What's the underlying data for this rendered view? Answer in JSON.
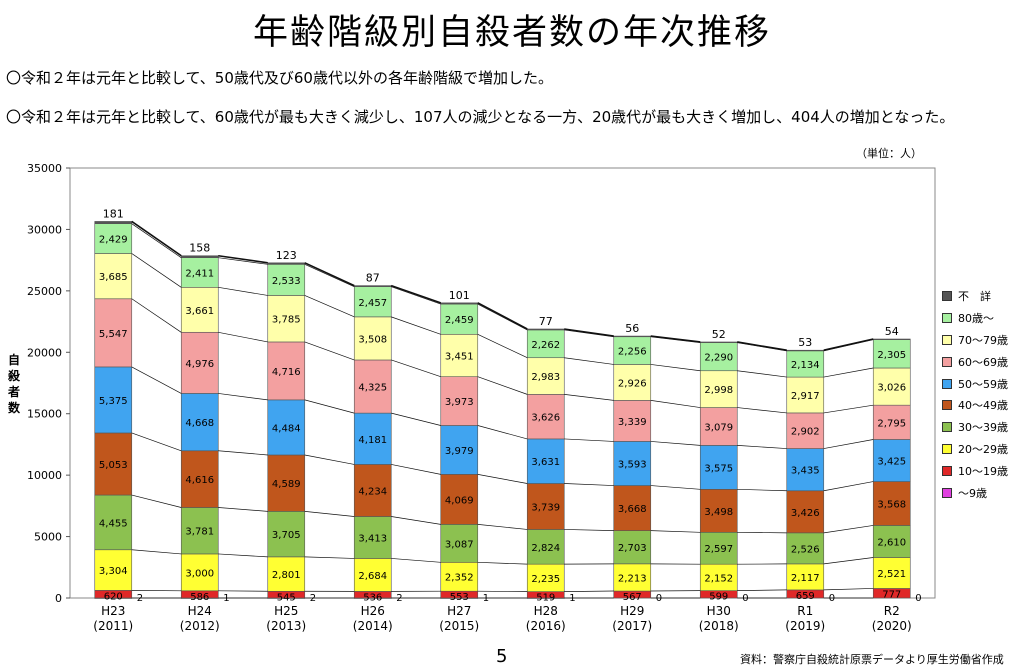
{
  "title": "年齢階級別自殺者数の年次推移",
  "notes": [
    "〇令和２年は元年と比較して、50歳代及び60歳代以外の各年齢階級で増加した。",
    "〇令和２年は元年と比較して、60歳代が最も大きく減少し、107人の減少となる一方、20歳代が最も大きく増加し、404人の増加となった。"
  ],
  "unit": "（単位：人）",
  "page_number": "5",
  "source": "資料：警察庁自殺統計原票データより厚生労働省作成",
  "colors": {
    "unknown": "#555555",
    "80plus": "#a6f0a0",
    "70s": "#ffffaa",
    "60s": "#f3a0a0",
    "50s": "#40a4f0",
    "40s": "#c0561c",
    "30s": "#8cc150",
    "20s": "#ffff33",
    "10s": "#e02828",
    "under9": "#e040e0"
  },
  "chart_data": {
    "type": "bar",
    "stacked": true,
    "title": "",
    "xlabel": "",
    "ylabel": "自殺者数",
    "ylim": [
      0,
      35000
    ],
    "yticks": [
      0,
      5000,
      10000,
      15000,
      20000,
      25000,
      30000,
      35000
    ],
    "categories": [
      "H23 (2011)",
      "H24 (2012)",
      "H25 (2013)",
      "H26 (2014)",
      "H27 (2015)",
      "H28 (2016)",
      "H29 (2017)",
      "H30 (2018)",
      "R1 (2019)",
      "R2 (2020)"
    ],
    "category_lines": [
      [
        "H23",
        "(2011)"
      ],
      [
        "H24",
        "(2012)"
      ],
      [
        "H25",
        "(2013)"
      ],
      [
        "H26",
        "(2014)"
      ],
      [
        "H27",
        "(2015)"
      ],
      [
        "H28",
        "(2016)"
      ],
      [
        "H29",
        "(2017)"
      ],
      [
        "H30",
        "(2018)"
      ],
      [
        "R1",
        "(2019)"
      ],
      [
        "R2",
        "(2020)"
      ]
    ],
    "legend_position": "right",
    "series": [
      {
        "name": "～9歳",
        "color_key": "under9",
        "values": [
          2,
          1,
          2,
          2,
          1,
          1,
          0,
          0,
          0,
          0
        ]
      },
      {
        "name": "10～19歳",
        "color_key": "10s",
        "values": [
          620,
          586,
          545,
          536,
          553,
          519,
          567,
          599,
          659,
          777
        ]
      },
      {
        "name": "20～29歳",
        "color_key": "20s",
        "values": [
          3304,
          3000,
          2801,
          2684,
          2352,
          2235,
          2213,
          2152,
          2117,
          2521
        ]
      },
      {
        "name": "30～39歳",
        "color_key": "30s",
        "values": [
          4455,
          3781,
          3705,
          3413,
          3087,
          2824,
          2703,
          2597,
          2526,
          2610
        ]
      },
      {
        "name": "40～49歳",
        "color_key": "40s",
        "values": [
          5053,
          4616,
          4589,
          4234,
          4069,
          3739,
          3668,
          3498,
          3426,
          3568
        ]
      },
      {
        "name": "50～59歳",
        "color_key": "50s",
        "values": [
          5375,
          4668,
          4484,
          4181,
          3979,
          3631,
          3593,
          3575,
          3435,
          3425
        ]
      },
      {
        "name": "60～69歳",
        "color_key": "60s",
        "values": [
          5547,
          4976,
          4716,
          4325,
          3973,
          3626,
          3339,
          3079,
          2902,
          2795
        ]
      },
      {
        "name": "70～79歳",
        "color_key": "70s",
        "values": [
          3685,
          3661,
          3785,
          3508,
          3451,
          2983,
          2926,
          2998,
          2917,
          3026
        ]
      },
      {
        "name": "80歳～",
        "color_key": "80plus",
        "values": [
          2429,
          2411,
          2533,
          2457,
          2459,
          2262,
          2256,
          2290,
          2134,
          2305
        ]
      },
      {
        "name": "不　詳",
        "color_key": "unknown",
        "values": [
          181,
          158,
          123,
          87,
          101,
          77,
          56,
          52,
          53,
          54
        ]
      }
    ]
  }
}
